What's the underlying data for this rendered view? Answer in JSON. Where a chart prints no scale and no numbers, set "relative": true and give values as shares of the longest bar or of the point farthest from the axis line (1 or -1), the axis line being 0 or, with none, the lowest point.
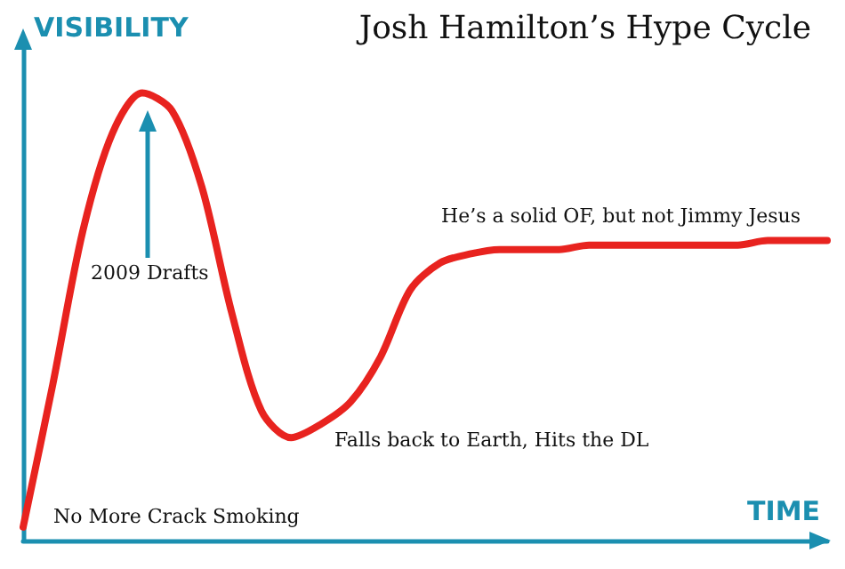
{
  "chart_data": {
    "type": "line",
    "title": "Josh Hamilton’s Hype Cycle",
    "xlabel": "TIME",
    "ylabel": "VISIBILITY",
    "relative": true,
    "categories": [
      null,
      null,
      null,
      null,
      null,
      null,
      null,
      null,
      null,
      null,
      null,
      null,
      null,
      null,
      null,
      null,
      null,
      null,
      null,
      null,
      null,
      null,
      null,
      null,
      null,
      null,
      null,
      null
    ],
    "series": [
      {
        "color": "#e8231f",
        "values": [
          0.03,
          0.35,
          0.69,
          0.91,
          1.0,
          0.96,
          0.79,
          0.51,
          0.29,
          0.23,
          0.26,
          0.31,
          0.41,
          0.56,
          0.62,
          0.64,
          0.65,
          0.65,
          0.65,
          0.66,
          0.66,
          0.66,
          0.66,
          0.66,
          0.66,
          0.67,
          0.67,
          0.67
        ]
      }
    ],
    "annotations": [
      "2009 Drafts",
      "He’s a solid OF, but not Jimmy Jesus",
      "Falls back to Earth, Hits the DL",
      "No More Crack Smoking"
    ],
    "marker": "none",
    "line_style": "solid"
  }
}
